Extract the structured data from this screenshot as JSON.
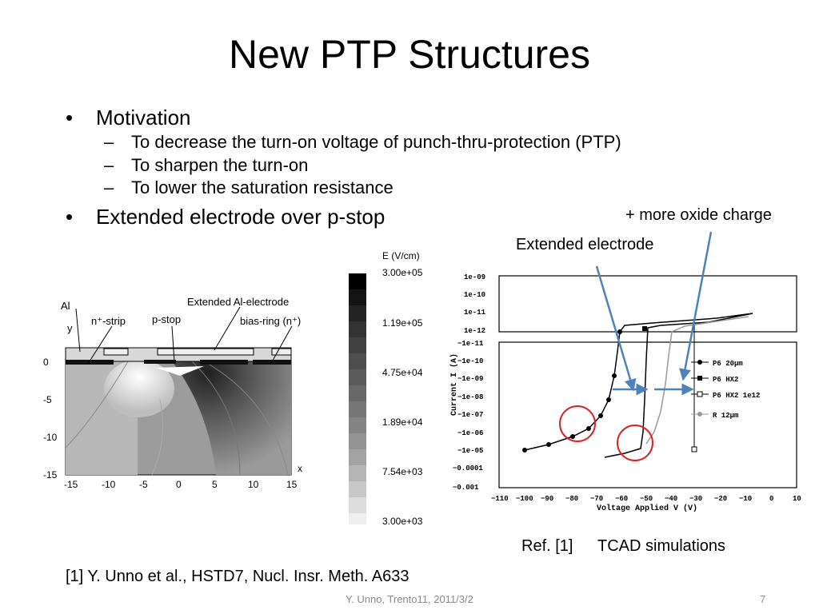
{
  "slide": {
    "title": "New PTP Structures",
    "bullets": [
      {
        "text": "Motivation",
        "subitems": [
          "To decrease the turn-on voltage of punch-thru-protection (PTP)",
          "To sharpen the turn-on",
          "To lower the saturation resistance"
        ]
      },
      {
        "text": "Extended electrode over p-stop"
      }
    ],
    "bullet_symbol": "•",
    "dash_symbol": "–",
    "reference": "[1] Y. Unno et al., HSTD7, Nucl. Insr. Meth. A633",
    "footer": "Y. Unno, Trento11, 2011/3/2",
    "page_number": "7"
  },
  "left_figure": {
    "labels": {
      "al": "Al",
      "y_axis": "y",
      "n_strip": "n⁺-strip",
      "p_stop": "p-stop",
      "extended_al": "Extended Al-electrode",
      "bias_ring": "bias-ring (n⁺)",
      "x_axis": "x"
    },
    "y_ticks": [
      "0",
      "-5",
      "-10",
      "-15"
    ],
    "x_ticks": [
      "-15",
      "-10",
      "-5",
      "0",
      "5",
      "10",
      "15"
    ],
    "colorbar": {
      "title": "E (V/cm)",
      "ticks": [
        "3.00e+05",
        "1.19e+05",
        "4.75e+04",
        "1.89e+04",
        "7.54e+03",
        "3.00e+03"
      ]
    }
  },
  "right_figure": {
    "annotation_oxide": "+ more oxide charge",
    "annotation_extended": "Extended electrode",
    "ref_label": "Ref. [1]",
    "tcad_label": "TCAD simulations",
    "y_axis_label": "Current I (A)",
    "x_axis_label": "Voltage Applied V (V)",
    "y_ticks_upper": [
      "1e-09",
      "1e-10",
      "1e-11",
      "1e-12"
    ],
    "y_ticks_lower": [
      "−1e-11",
      "−1e-10",
      "−1e-09",
      "−1e-08",
      "−1e-07",
      "−1e-06",
      "−1e-05",
      "−0.0001",
      "−0.001"
    ],
    "x_ticks": [
      "−110",
      "−100",
      "−90",
      "−80",
      "−70",
      "−60",
      "−50",
      "−40",
      "−30",
      "−20",
      "−10",
      "0",
      "10"
    ],
    "legend": [
      "P6 20μm",
      "P6 HX2",
      "P6 HX2 1e12",
      "R 12μm"
    ],
    "colors": {
      "arrow": "#4f81bd",
      "circle": "#e02020"
    }
  }
}
